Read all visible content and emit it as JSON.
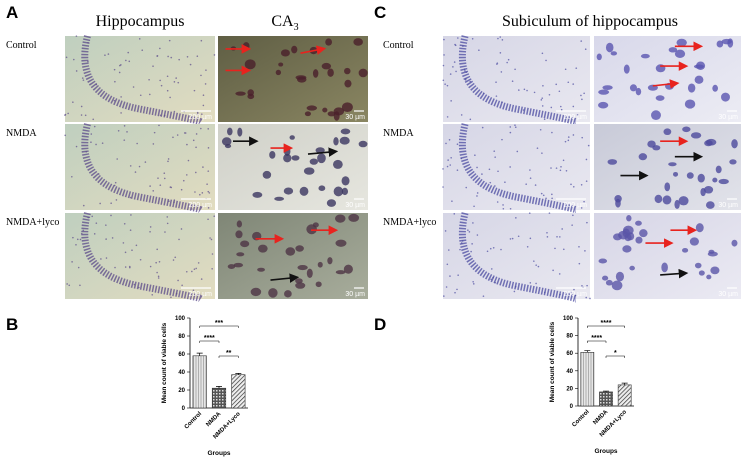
{
  "panel_a": {
    "letter": "A",
    "title_left": "Hippocampus",
    "title_right_main": "CA",
    "title_right_sub": "3",
    "rows": [
      "Control",
      "NMDA",
      "NMDA+lyco"
    ],
    "scale_left": "200 µm",
    "scale_right": "30 µm"
  },
  "panel_c": {
    "letter": "C",
    "title": "Subiculum of hippocampus",
    "rows": [
      "Control",
      "NMDA",
      "NMDA+lyco"
    ],
    "scale_left": "200 µm",
    "scale_right": "30 µm"
  },
  "panel_b": {
    "letter": "B"
  },
  "panel_d": {
    "letter": "D"
  },
  "chart_data": [
    {
      "type": "bar",
      "y_label": "Mean count of viable cells",
      "x_label": "Groups",
      "categories": [
        "Control",
        "NMDA",
        "NMDA+Lyco"
      ],
      "values": [
        58,
        22,
        37
      ],
      "errors": [
        3,
        2,
        1.5
      ],
      "ylim": [
        0,
        100
      ],
      "yticks": [
        0,
        20,
        40,
        60,
        80,
        100
      ],
      "hatches": [
        "vertical",
        "dots",
        "diagonal"
      ],
      "significance": [
        {
          "pair": [
            0,
            2
          ],
          "label": "***"
        },
        {
          "pair": [
            0,
            1
          ],
          "label": "****"
        },
        {
          "pair": [
            1,
            2
          ],
          "label": "**"
        }
      ]
    },
    {
      "type": "bar",
      "y_label": "Mean count of viable cells",
      "x_label": "Groups",
      "categories": [
        "Control",
        "NMDA",
        "NMDA+Lyco"
      ],
      "values": [
        61,
        16,
        24
      ],
      "errors": [
        2,
        1,
        2
      ],
      "ylim": [
        0,
        100
      ],
      "yticks": [
        0,
        20,
        40,
        60,
        80,
        100
      ],
      "hatches": [
        "vertical",
        "dots",
        "diagonal"
      ],
      "significance": [
        {
          "pair": [
            0,
            2
          ],
          "label": "****"
        },
        {
          "pair": [
            0,
            1
          ],
          "label": "****"
        },
        {
          "pair": [
            1,
            2
          ],
          "label": "*"
        }
      ]
    }
  ]
}
